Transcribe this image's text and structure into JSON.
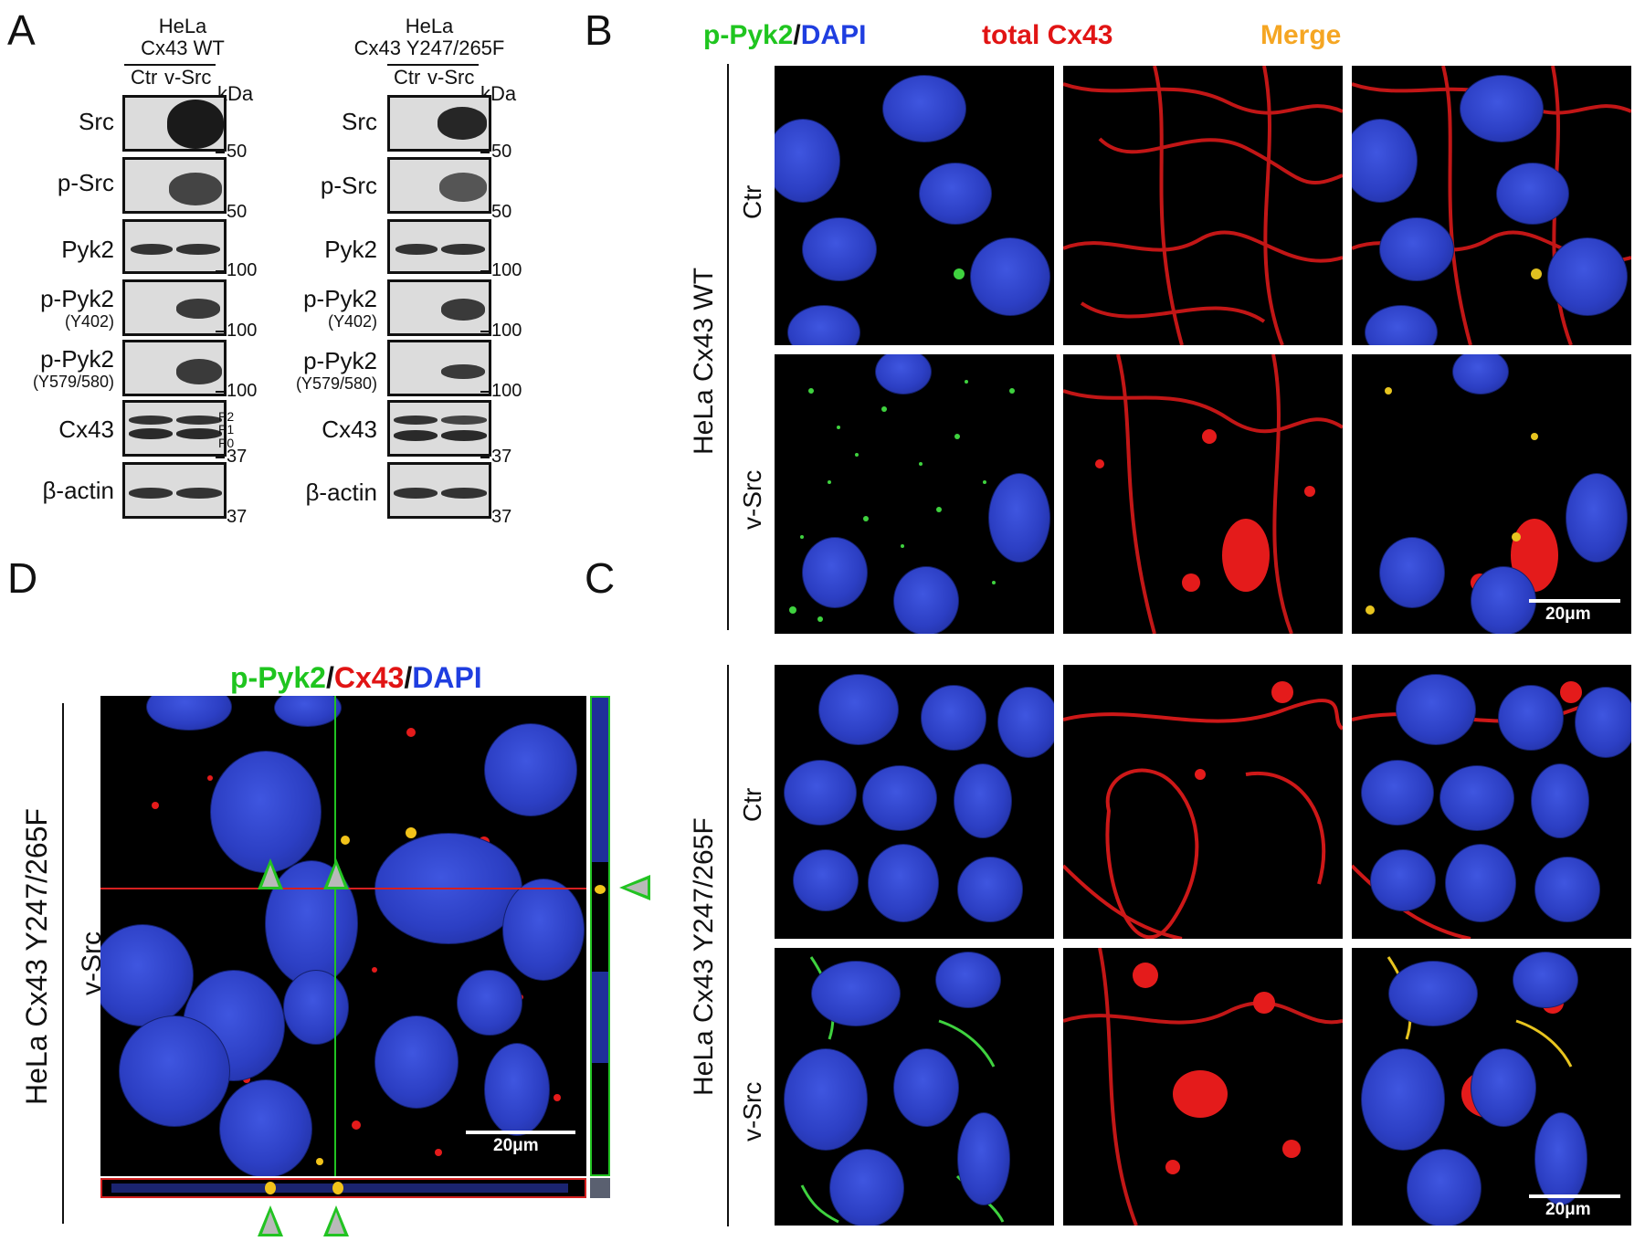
{
  "panels": {
    "A": "A",
    "B": "B",
    "C": "C",
    "D": "D"
  },
  "panelA": {
    "wt": {
      "title1": "HeLa",
      "title2": "Cx43 WT",
      "ctr": "Ctr",
      "vsrc": "v-Src",
      "kda": "kDa"
    },
    "mut": {
      "title1": "HeLa",
      "title2": "Cx43 Y247/265F",
      "ctr": "Ctr",
      "vsrc": "v-Src",
      "kda": "kDa"
    },
    "rows": [
      {
        "label": "Src",
        "sub": "",
        "mw": "50"
      },
      {
        "label": "p-Src",
        "sub": "",
        "mw": "50"
      },
      {
        "label": "Pyk2",
        "sub": "",
        "mw": "100"
      },
      {
        "label": "p-Pyk2",
        "sub": "(Y402)",
        "mw": "100"
      },
      {
        "label": "p-Pyk2",
        "sub": "(Y579/580)",
        "mw": "100"
      },
      {
        "label": "Cx43",
        "sub": "",
        "mw": "37"
      },
      {
        "label": "β-actin",
        "sub": "",
        "mw": "37"
      }
    ],
    "cx43_bands": {
      "p2": "P2",
      "p1": "P1",
      "p0": "P0"
    }
  },
  "panelB": {
    "col1_a": "p-Pyk2",
    "col1_sep": "/",
    "col1_b": "DAPI",
    "col2": "total Cx43",
    "col3": "Merge",
    "group": "HeLa Cx43 WT",
    "row1": "Ctr",
    "row2": "v-Src",
    "scale": "20μm"
  },
  "panelC": {
    "group": "HeLa Cx43 Y247/265F",
    "row1": "Ctr",
    "row2": "v-Src",
    "scale": "20μm"
  },
  "panelD": {
    "title_a": "p-Pyk2",
    "sep1": "/",
    "title_b": "Cx43",
    "sep2": "/",
    "title_c": "DAPI",
    "group": "HeLa Cx43 Y247/265F",
    "row": "v-Src",
    "scale": "20μm"
  },
  "colors": {
    "green": "#1fc51f",
    "blue": "#1f3ee0",
    "red": "#e11414",
    "orange": "#f5a623"
  }
}
